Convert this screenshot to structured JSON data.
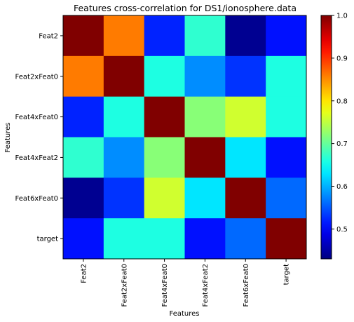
{
  "chart_data": {
    "type": "heatmap",
    "title": "Features cross-correlation for DS1/ionosphere.data",
    "xlabel": "Features",
    "ylabel": "Features",
    "x_categories": [
      "Feat2",
      "Feat2xFeat0",
      "Feat4xFeat0",
      "Feat4xFeat2",
      "Feat6xFeat0",
      "target"
    ],
    "y_categories": [
      "Feat2",
      "Feat2xFeat0",
      "Feat4xFeat0",
      "Feat4xFeat2",
      "Feat6xFeat0",
      "target"
    ],
    "values": [
      [
        1.0,
        0.86,
        0.52,
        0.67,
        0.44,
        0.51
      ],
      [
        0.86,
        1.0,
        0.66,
        0.58,
        0.53,
        0.66
      ],
      [
        0.52,
        0.66,
        1.0,
        0.72,
        0.76,
        0.66
      ],
      [
        0.67,
        0.58,
        0.72,
        1.0,
        0.63,
        0.51
      ],
      [
        0.44,
        0.53,
        0.76,
        0.63,
        1.0,
        0.56
      ],
      [
        0.51,
        0.66,
        0.66,
        0.51,
        0.56,
        1.0
      ]
    ],
    "colormap": "jet",
    "vmin": 0.43,
    "vmax": 1.0,
    "colorbar_ticks": [
      "0.5",
      "0.6",
      "0.7",
      "0.8",
      "0.9",
      "1.0"
    ],
    "grid": false,
    "legend": "colorbar-right"
  }
}
